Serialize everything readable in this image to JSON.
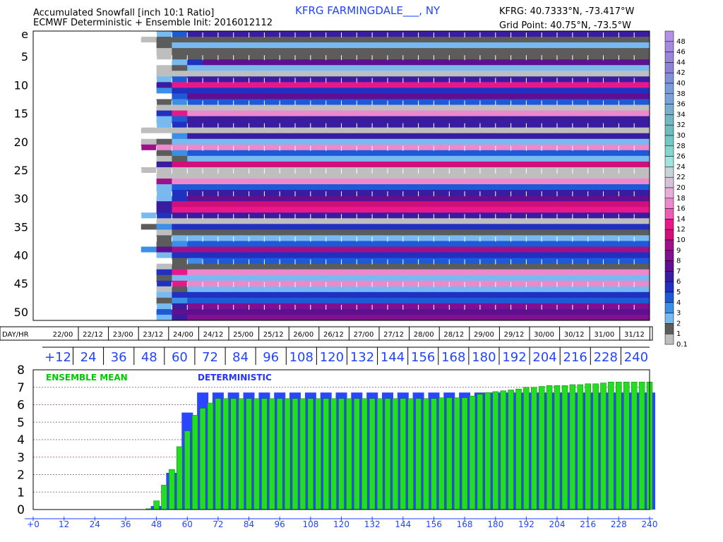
{
  "header": {
    "title_line1": "Accumulated Snowfall [inch 10:1 Ratio]",
    "title_line2": "ECMWF Deterministic + Ensemble Init: 2016012112",
    "station": "KFRG FARMINGDALE___, NY",
    "coords": "KFRG: 40.7333°N, -73.417°W",
    "grid_point": "Grid Point: 40.75°N, -73.5°W"
  },
  "colors": {
    "background": "#ffffff",
    "deterministic_bar": "#2a47ff",
    "ensemble_bar": "#22dd22",
    "ensemble_label": "#00c800",
    "deterministic_label": "#2233ff",
    "hour_label": "#2244ff",
    "gridline": "#b07090",
    "heatmap_divider": "#ffffff"
  },
  "chart_data": [
    {
      "type": "heatmap",
      "title": "Accumulated Snowfall [inch 10:1 Ratio]",
      "row_tick_labels": [
        "e",
        "5",
        "10",
        "15",
        "20",
        "25",
        "30",
        "35",
        "40",
        "45",
        "50"
      ],
      "col_axis_label": "DAY/HR",
      "col_tick_labels": [
        "22/00",
        "22/12",
        "23/00",
        "23/12",
        "24/00",
        "24/12",
        "25/00",
        "25/12",
        "26/00",
        "26/12",
        "27/00",
        "27/12",
        "28/00",
        "28/12",
        "29/00",
        "29/12",
        "30/00",
        "30/12",
        "31/00",
        "31/12"
      ],
      "hour_tick_labels": [
        "+12",
        "24",
        "36",
        "48",
        "60",
        "72",
        "84",
        "96",
        "108",
        "120",
        "132",
        "144",
        "156",
        "168",
        "180",
        "192",
        "204",
        "216",
        "228",
        "240"
      ],
      "rows": 51,
      "cols": 40,
      "legend": {
        "labels": [
          "48",
          "46",
          "44",
          "42",
          "40",
          "38",
          "36",
          "34",
          "32",
          "30",
          "28",
          "26",
          "24",
          "22",
          "20",
          "18",
          "16",
          "14",
          "12",
          "10",
          "9",
          "8",
          "7",
          "6",
          "5",
          "4",
          "3",
          "2",
          "1",
          "0.1"
        ],
        "colors": [
          "#b391e6",
          "#a68ae0",
          "#9a85da",
          "#8d82d6",
          "#8290d8",
          "#7a9bdc",
          "#7aa4d8",
          "#78aece",
          "#73b6c4",
          "#6fbcbc",
          "#72c8c4",
          "#86d6cf",
          "#a0e4e0",
          "#c8d3d8",
          "#d6c1d9",
          "#e6b0d6",
          "#ee88cc",
          "#ee5cb6",
          "#e8188a",
          "#d0107a",
          "#a0108a",
          "#801090",
          "#5e1090",
          "#3a1ca0",
          "#2030c0",
          "#1e5ad8",
          "#3c8ee6",
          "#78baf0",
          "#5c5c5c",
          "#bebebe"
        ],
        "zero_color": "#ffffff"
      },
      "final_values": [
        6.0,
        1.5,
        2.5,
        1.5,
        1.5,
        7.0,
        2.5,
        0.3,
        6.0,
        12.0,
        5.5,
        7.5,
        4.5,
        0.4,
        16.0,
        6.0,
        6.5,
        0.4,
        6.5,
        2.5,
        16.0,
        4.5,
        2.5,
        11.0,
        0.2,
        0.2,
        16.0,
        4.5,
        6.5,
        7.0,
        11.0,
        12.0,
        6.5,
        0.4,
        5.0,
        1.5,
        2.5,
        4.5,
        9.0,
        5.0,
        4.5,
        1.5,
        16.0,
        2.0,
        16.0,
        2.0,
        5.0,
        4.0,
        8.0,
        7.0,
        8.0
      ],
      "onset_hours": [
        54,
        48,
        51,
        54,
        54,
        60,
        54,
        54,
        54,
        51,
        51,
        57,
        54,
        54,
        54,
        54,
        54,
        48,
        57,
        48,
        45,
        54,
        54,
        51,
        48,
        51,
        51,
        51,
        54,
        54,
        51,
        51,
        48,
        54,
        48,
        54,
        51,
        54,
        48,
        51,
        60,
        51,
        54,
        51,
        54,
        54,
        51,
        54,
        54,
        51,
        54
      ]
    },
    {
      "type": "bar",
      "x_axis_labels": [
        "+0",
        "12",
        "24",
        "36",
        "48",
        "60",
        "72",
        "84",
        "96",
        "108",
        "120",
        "132",
        "144",
        "156",
        "168",
        "180",
        "192",
        "204",
        "216",
        "228",
        "240"
      ],
      "y_tick_labels": [
        "0",
        "1",
        "2",
        "3",
        "4",
        "5",
        "6",
        "7",
        "8"
      ],
      "ylim": [
        0,
        8
      ],
      "x": [
        3,
        6,
        9,
        12,
        15,
        18,
        21,
        24,
        27,
        30,
        33,
        36,
        39,
        42,
        45,
        48,
        51,
        54,
        57,
        60,
        63,
        66,
        69,
        72,
        75,
        78,
        81,
        84,
        87,
        90,
        93,
        96,
        99,
        102,
        105,
        108,
        111,
        114,
        117,
        120,
        123,
        126,
        129,
        132,
        135,
        138,
        141,
        144,
        147,
        150,
        153,
        156,
        159,
        162,
        165,
        168,
        171,
        174,
        177,
        180,
        183,
        186,
        189,
        192,
        195,
        198,
        201,
        204,
        207,
        210,
        213,
        216,
        219,
        222,
        225,
        228,
        231,
        234,
        237,
        240
      ],
      "series": [
        {
          "name": "DETERMINISTIC",
          "x": [
            42,
            48,
            54,
            60,
            66,
            72,
            78,
            84,
            90,
            96,
            102,
            108,
            114,
            120,
            126,
            132,
            138,
            144,
            150,
            156,
            162,
            168,
            174,
            180,
            186,
            192,
            198,
            204,
            210,
            216,
            222,
            228,
            234,
            240
          ],
          "values": [
            0.0,
            0.2,
            2.1,
            5.55,
            6.7,
            6.7,
            6.7,
            6.7,
            6.7,
            6.7,
            6.7,
            6.7,
            6.7,
            6.7,
            6.7,
            6.7,
            6.7,
            6.7,
            6.7,
            6.7,
            6.7,
            6.7,
            6.7,
            6.7,
            6.7,
            6.7,
            6.7,
            6.7,
            6.7,
            6.7,
            6.7,
            6.7,
            6.7,
            6.7
          ]
        },
        {
          "name": "ENSEMBLE MEAN",
          "x": [
            45,
            48,
            51,
            54,
            57,
            60,
            63,
            66,
            69,
            72,
            75,
            78,
            81,
            84,
            87,
            90,
            93,
            96,
            99,
            102,
            105,
            108,
            111,
            114,
            117,
            120,
            123,
            126,
            129,
            132,
            135,
            138,
            141,
            144,
            147,
            150,
            153,
            156,
            159,
            162,
            165,
            168,
            171,
            174,
            177,
            180,
            183,
            186,
            189,
            192,
            195,
            198,
            201,
            204,
            207,
            210,
            213,
            216,
            219,
            222,
            225,
            228,
            231,
            234,
            237,
            240
          ],
          "values": [
            0.05,
            0.5,
            1.4,
            2.3,
            3.6,
            4.5,
            5.4,
            5.8,
            6.1,
            6.35,
            6.35,
            6.35,
            6.35,
            6.35,
            6.35,
            6.35,
            6.35,
            6.35,
            6.35,
            6.35,
            6.35,
            6.35,
            6.35,
            6.35,
            6.35,
            6.35,
            6.35,
            6.35,
            6.35,
            6.35,
            6.35,
            6.35,
            6.35,
            6.35,
            6.35,
            6.35,
            6.35,
            6.35,
            6.4,
            6.4,
            6.4,
            6.4,
            6.5,
            6.6,
            6.7,
            6.75,
            6.8,
            6.85,
            6.9,
            7.0,
            7.0,
            7.05,
            7.1,
            7.1,
            7.1,
            7.15,
            7.15,
            7.2,
            7.2,
            7.25,
            7.3,
            7.3,
            7.3,
            7.3,
            7.3,
            7.3
          ]
        }
      ],
      "legend_labels": [
        "ENSEMBLE MEAN",
        "DETERMINISTIC"
      ]
    }
  ]
}
